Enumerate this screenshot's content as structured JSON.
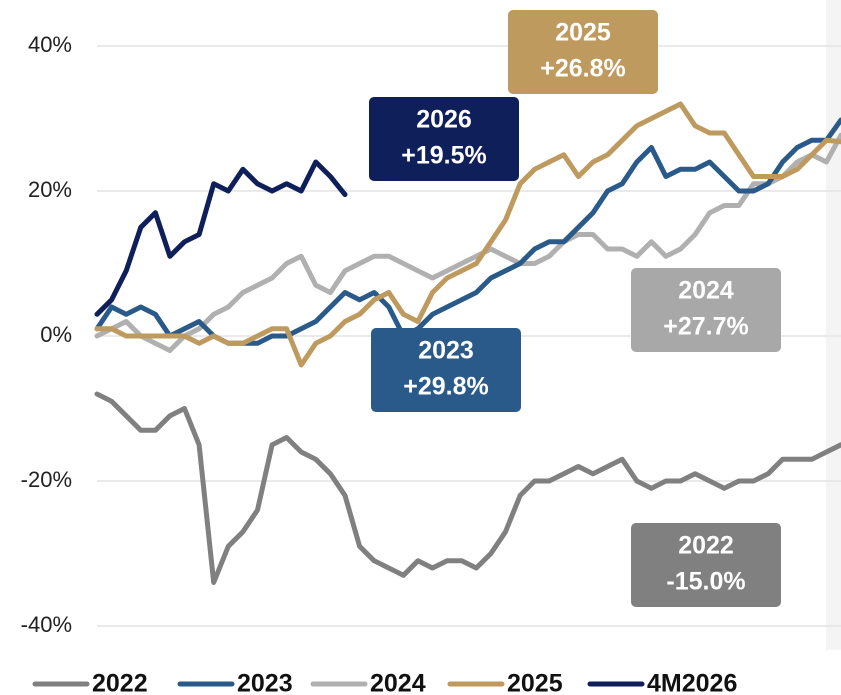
{
  "chart_data": {
    "type": "line",
    "categories": [
      null,
      null,
      null,
      null,
      null,
      null,
      null,
      null,
      null,
      null,
      null,
      null,
      null,
      null,
      null,
      null,
      null,
      null,
      null,
      null,
      null,
      null,
      null,
      null,
      null,
      null,
      null,
      null,
      null,
      null,
      null,
      null,
      null,
      null,
      null,
      null,
      null,
      null,
      null,
      null,
      null,
      null,
      null,
      null,
      null,
      null,
      null,
      null,
      null,
      null,
      null,
      null
    ],
    "ylim": [
      -40,
      40
    ],
    "yticks": [
      {
        "value": 40,
        "label": "40%"
      },
      {
        "value": 20,
        "label": "20%"
      },
      {
        "value": 0,
        "label": "0%"
      },
      {
        "value": -20,
        "label": "-20%"
      },
      {
        "value": -40,
        "label": "-40%"
      }
    ],
    "grid": true,
    "series": [
      {
        "name": "2022",
        "color": "#808080",
        "values": [
          -8,
          -9,
          -11,
          -13,
          -13,
          -11,
          -10,
          -15,
          -34,
          -29,
          -27,
          -24,
          -15,
          -14,
          -16,
          -17,
          -19,
          -22,
          -29,
          -31,
          -32,
          -33,
          -31,
          -32,
          -31,
          -31,
          -32,
          -30,
          -27,
          -22,
          -20,
          -20,
          -19,
          -18,
          -19,
          -18,
          -17,
          -20,
          -21,
          -20,
          -20,
          -19,
          -20,
          -21,
          -20,
          -20,
          -19,
          -17,
          -17,
          -17,
          -16,
          -15
        ]
      },
      {
        "name": "2023",
        "color": "#2a5a8a",
        "values": [
          1,
          4,
          3,
          4,
          3,
          0,
          1,
          2,
          0,
          -1,
          -1,
          -1,
          0,
          0,
          1,
          2,
          4,
          6,
          5,
          6,
          4,
          0,
          1,
          3,
          4,
          5,
          6,
          8,
          9,
          10,
          12,
          13,
          13,
          15,
          17,
          20,
          21,
          24,
          26,
          22,
          23,
          23,
          24,
          22,
          20,
          20,
          21,
          24,
          26,
          27,
          27,
          29.8
        ]
      },
      {
        "name": "2024",
        "color": "#b0b0b0",
        "values": [
          0,
          1,
          2,
          0,
          -1,
          -2,
          0,
          1,
          3,
          4,
          6,
          7,
          8,
          10,
          11,
          7,
          6,
          9,
          10,
          11,
          11,
          10,
          9,
          8,
          9,
          10,
          11,
          12,
          11,
          10,
          10,
          11,
          13,
          14,
          14,
          12,
          12,
          11,
          13,
          11,
          12,
          14,
          17,
          18,
          18,
          21,
          21,
          22,
          24,
          25,
          24,
          27.7
        ]
      },
      {
        "name": "2025",
        "color": "#bf9a5f",
        "values": [
          1,
          1,
          0,
          0,
          0,
          0,
          0,
          -1,
          0,
          -1,
          -1,
          0,
          1,
          1,
          -4,
          -1,
          0,
          2,
          3,
          5,
          6,
          3,
          2,
          6,
          8,
          9,
          10,
          13,
          16,
          21,
          23,
          24,
          25,
          22,
          24,
          25,
          27,
          29,
          30,
          31,
          32,
          29,
          28,
          28,
          25,
          22,
          22,
          22,
          23,
          25,
          27,
          26.8
        ]
      },
      {
        "name": "4M2026",
        "color": "#0f1f5a",
        "values": [
          3,
          5,
          9,
          15,
          17,
          11,
          13,
          14,
          21,
          20,
          23,
          21,
          20,
          21,
          20,
          24,
          22,
          19.5,
          null,
          null,
          null,
          null,
          null,
          null,
          null,
          null,
          null,
          null,
          null,
          null,
          null,
          null,
          null,
          null,
          null,
          null,
          null,
          null,
          null,
          null,
          null,
          null,
          null,
          null,
          null,
          null,
          null,
          null,
          null,
          null,
          null,
          null
        ]
      }
    ],
    "annotations": [
      {
        "lines": [
          "2025",
          "+26.8%"
        ],
        "color": "#bf9a5f"
      },
      {
        "lines": [
          "2026",
          "+19.5%"
        ],
        "color": "#0f1f5a"
      },
      {
        "lines": [
          "2023",
          "+29.8%"
        ],
        "color": "#2a5a8a"
      },
      {
        "lines": [
          "2024",
          "+27.7%"
        ],
        "color": "#a8a8a8"
      },
      {
        "lines": [
          "2022",
          "-15.0%"
        ],
        "color": "#808080"
      }
    ]
  }
}
